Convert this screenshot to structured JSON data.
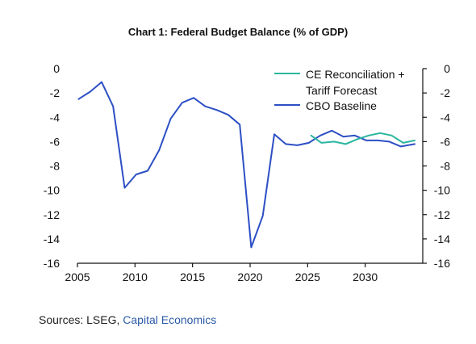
{
  "title": "Chart 1: Federal Budget Balance (% of GDP)",
  "source_prefix": "Sources: LSEG, ",
  "source_org": "Capital Economics",
  "chart_data": {
    "type": "line",
    "title": "Chart 1: Federal Budget Balance (% of GDP)",
    "xlim": [
      2005,
      2035
    ],
    "ylim": [
      -16,
      0
    ],
    "x_ticks": [
      2005,
      2010,
      2015,
      2020,
      2025,
      2030
    ],
    "y_ticks": [
      0,
      -2,
      -4,
      -6,
      -8,
      -10,
      -12,
      -14,
      -16
    ],
    "y_axis_left": true,
    "y_axis_right": true,
    "grid": false,
    "legend_position": "top-right",
    "legend_labels": [
      [
        "CE Reconciliation +",
        "Tariff Forecast"
      ],
      [
        "CBO Baseline"
      ]
    ],
    "series": [
      {
        "name": "CE Reconciliation + Tariff Forecast",
        "color": "#2bb5a0",
        "x": [
          2025.3,
          2026.2,
          2027.3,
          2028.3,
          2029.3,
          2030.3,
          2031.3,
          2032.3,
          2033.3,
          2034.3
        ],
        "y": [
          -5.5,
          -6.1,
          -6.0,
          -6.2,
          -5.8,
          -5.5,
          -5.3,
          -5.5,
          -6.1,
          -5.9
        ]
      },
      {
        "name": "CBO Baseline",
        "color": "#2d4fc4",
        "x": [
          2005.1,
          2006.1,
          2007.1,
          2008.1,
          2009.1,
          2010.1,
          2011.1,
          2012.1,
          2013.1,
          2014.1,
          2015.1,
          2016.1,
          2017.1,
          2018.1,
          2019.1,
          2020.1,
          2021.1,
          2022.1,
          2023.1,
          2024.1,
          2025.1,
          2026.1,
          2027.1,
          2028.1,
          2029.1,
          2030.1,
          2031.1,
          2032.1,
          2033.1,
          2034.3
        ],
        "y": [
          -2.5,
          -1.9,
          -1.1,
          -3.1,
          -9.8,
          -8.7,
          -8.4,
          -6.7,
          -4.1,
          -2.8,
          -2.4,
          -3.1,
          -3.4,
          -3.8,
          -4.6,
          -14.7,
          -12.1,
          -5.4,
          -6.2,
          -6.3,
          -6.1,
          -5.5,
          -5.1,
          -5.6,
          -5.5,
          -5.9,
          -5.9,
          -6.0,
          -6.4,
          -6.2
        ]
      }
    ]
  }
}
